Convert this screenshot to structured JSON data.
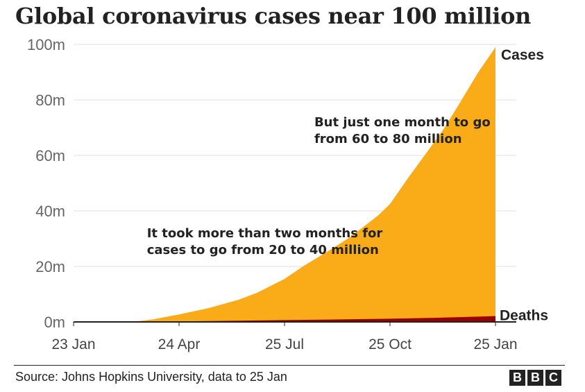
{
  "chart_data": {
    "type": "area",
    "title": "Global coronavirus cases near 100 million",
    "y_tick_labels": [
      "0m",
      "20m",
      "40m",
      "60m",
      "80m",
      "100m"
    ],
    "y_ticks": [
      0,
      20,
      40,
      60,
      80,
      100
    ],
    "ylim": [
      0,
      100
    ],
    "xlim": [
      "2020-01-23",
      "2021-01-25"
    ],
    "x_tick_labels": [
      "23 Jan",
      "24 Apr",
      "25 Jul",
      "25 Oct",
      "25 Jan"
    ],
    "x_ticks": [
      "2020-01-23",
      "2020-04-24",
      "2020-07-25",
      "2020-10-25",
      "2021-01-25"
    ],
    "grid": "horizontal",
    "series": [
      {
        "name": "Cases",
        "color": "#FAAB18",
        "x": [
          "2020-01-23",
          "2020-03-01",
          "2020-03-20",
          "2020-04-01",
          "2020-04-24",
          "2020-05-20",
          "2020-06-15",
          "2020-07-01",
          "2020-07-25",
          "2020-08-10",
          "2020-09-01",
          "2020-09-20",
          "2020-10-01",
          "2020-10-15",
          "2020-10-25",
          "2020-11-10",
          "2020-11-25",
          "2020-12-10",
          "2020-12-25",
          "2021-01-10",
          "2021-01-25"
        ],
        "values": [
          0,
          0.1,
          0.3,
          0.9,
          2.7,
          5.0,
          8.0,
          10.5,
          15.5,
          20.0,
          25.5,
          30.5,
          34.0,
          38.5,
          42.5,
          52.0,
          60.5,
          69.0,
          79.0,
          90.0,
          99.0
        ]
      },
      {
        "name": "Deaths",
        "color": "#990000",
        "x": [
          "2020-01-23",
          "2020-03-20",
          "2020-04-24",
          "2020-06-15",
          "2020-07-25",
          "2020-09-01",
          "2020-10-25",
          "2020-12-10",
          "2021-01-25"
        ],
        "values": [
          0,
          0.02,
          0.2,
          0.45,
          0.65,
          0.85,
          1.15,
          1.55,
          2.1
        ]
      }
    ],
    "annotations": [
      {
        "lines": [
          "But just one month to go",
          "from 60 to 80 million"
        ],
        "x": "2020-08-20",
        "y": 70.5
      },
      {
        "lines": [
          "It took more than two months for",
          "cases to go from 20 to 40 million"
        ],
        "x": "2020-03-27",
        "y": 30.5
      }
    ]
  },
  "source": "Source: Johns Hopkins University, data to 25 Jan",
  "brand": {
    "letters": [
      "B",
      "B",
      "C"
    ]
  }
}
